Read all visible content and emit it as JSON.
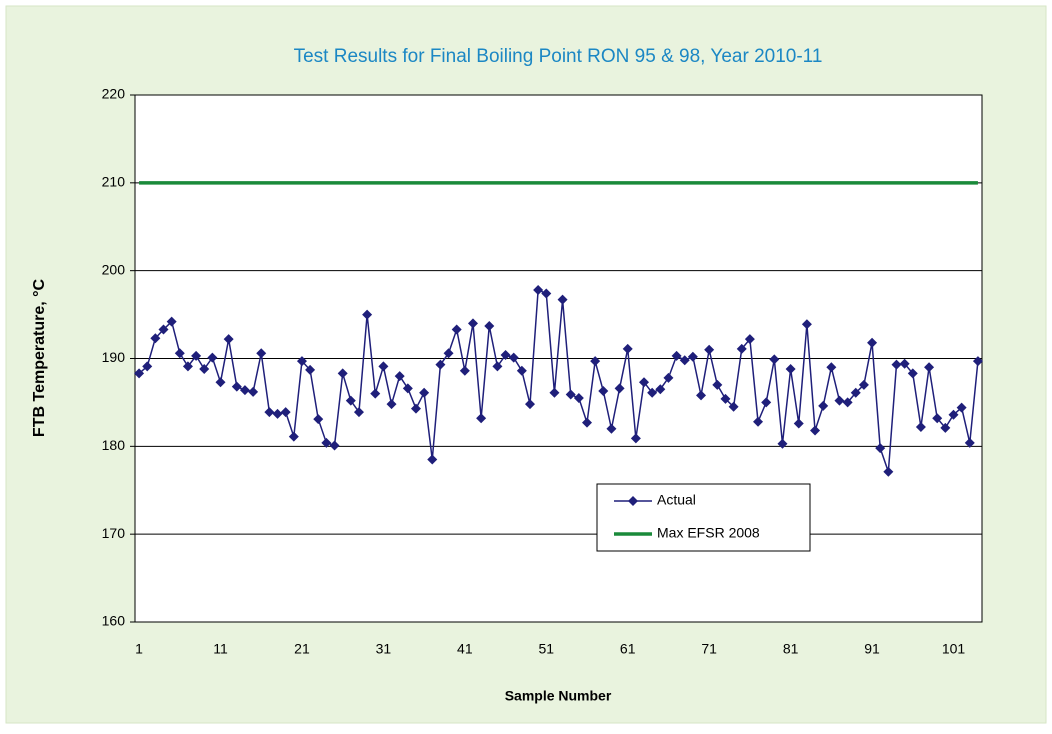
{
  "chart_data": {
    "type": "line",
    "title": "Test Results for Final Boiling Point RON 95 & 98, Year 2010-11",
    "x_label": "Sample Number",
    "y_label": "FTB Temperature, °C",
    "categories": [
      1,
      null,
      null,
      null,
      null,
      null,
      null,
      null,
      null,
      null,
      11,
      null,
      null,
      null,
      null,
      null,
      null,
      null,
      null,
      null,
      21,
      null,
      null,
      null,
      null,
      null,
      null,
      null,
      null,
      null,
      31,
      null,
      null,
      null,
      null,
      null,
      null,
      null,
      null,
      null,
      41,
      null,
      null,
      null,
      null,
      null,
      null,
      null,
      null,
      null,
      51,
      null,
      null,
      null,
      null,
      null,
      null,
      null,
      null,
      null,
      61,
      null,
      null,
      null,
      null,
      null,
      null,
      null,
      null,
      null,
      71,
      null,
      null,
      null,
      null,
      null,
      null,
      null,
      null,
      null,
      81,
      null,
      null,
      null,
      null,
      null,
      null,
      null,
      null,
      null,
      91,
      null,
      null,
      null,
      null,
      null,
      null,
      null,
      null,
      null,
      101,
      null,
      null,
      null
    ],
    "series": [
      {
        "name": "Actual",
        "color": "#1f1f7a",
        "marker": "diamond",
        "values": [
          188.3,
          189.1,
          192.3,
          193.3,
          194.2,
          190.6,
          189.1,
          190.3,
          188.8,
          190.1,
          187.3,
          192.2,
          186.8,
          186.4,
          186.2,
          190.6,
          183.9,
          183.7,
          183.9,
          181.1,
          189.7,
          188.7,
          183.1,
          180.4,
          180.1,
          188.3,
          185.2,
          183.9,
          195.0,
          186.0,
          189.1,
          184.8,
          188.0,
          186.6,
          184.3,
          186.1,
          178.5,
          189.3,
          190.6,
          193.3,
          188.6,
          194.0,
          183.2,
          193.7,
          189.1,
          190.4,
          190.1,
          188.6,
          184.8,
          197.8,
          197.4,
          186.1,
          196.7,
          185.9,
          185.5,
          182.7,
          189.7,
          186.3,
          182.0,
          186.6,
          191.1,
          180.9,
          187.3,
          186.1,
          186.5,
          187.8,
          190.3,
          189.8,
          190.2,
          185.8,
          191.0,
          187.0,
          185.4,
          184.5,
          191.1,
          192.2,
          182.8,
          185.0,
          189.9,
          180.3,
          188.8,
          182.6,
          193.9,
          181.8,
          184.6,
          189.0,
          185.2,
          185.0,
          186.1,
          187.0,
          191.8,
          179.8,
          177.1,
          189.3,
          189.4,
          188.3,
          182.2,
          189.0,
          183.2,
          182.1,
          183.6,
          184.4,
          180.4,
          189.7
        ]
      },
      {
        "name": "Max EFSR 2008",
        "color": "#1a8a3a",
        "marker": "none",
        "values": [
          210,
          210,
          210,
          210,
          210,
          210,
          210,
          210,
          210,
          210,
          210,
          210,
          210,
          210,
          210,
          210,
          210,
          210,
          210,
          210,
          210,
          210,
          210,
          210,
          210,
          210,
          210,
          210,
          210,
          210,
          210,
          210,
          210,
          210,
          210,
          210,
          210,
          210,
          210,
          210,
          210,
          210,
          210,
          210,
          210,
          210,
          210,
          210,
          210,
          210,
          210,
          210,
          210,
          210,
          210,
          210,
          210,
          210,
          210,
          210,
          210,
          210,
          210,
          210,
          210,
          210,
          210,
          210,
          210,
          210,
          210,
          210,
          210,
          210,
          210,
          210,
          210,
          210,
          210,
          210,
          210,
          210,
          210,
          210,
          210,
          210,
          210,
          210,
          210,
          210,
          210,
          210,
          210,
          210,
          210,
          210,
          210,
          210,
          210,
          210,
          210,
          210,
          210,
          210
        ]
      }
    ],
    "ylim": [
      160,
      220
    ],
    "yticks": [
      160,
      170,
      180,
      190,
      200,
      210,
      220
    ],
    "grid": true,
    "legend": "lower center"
  }
}
